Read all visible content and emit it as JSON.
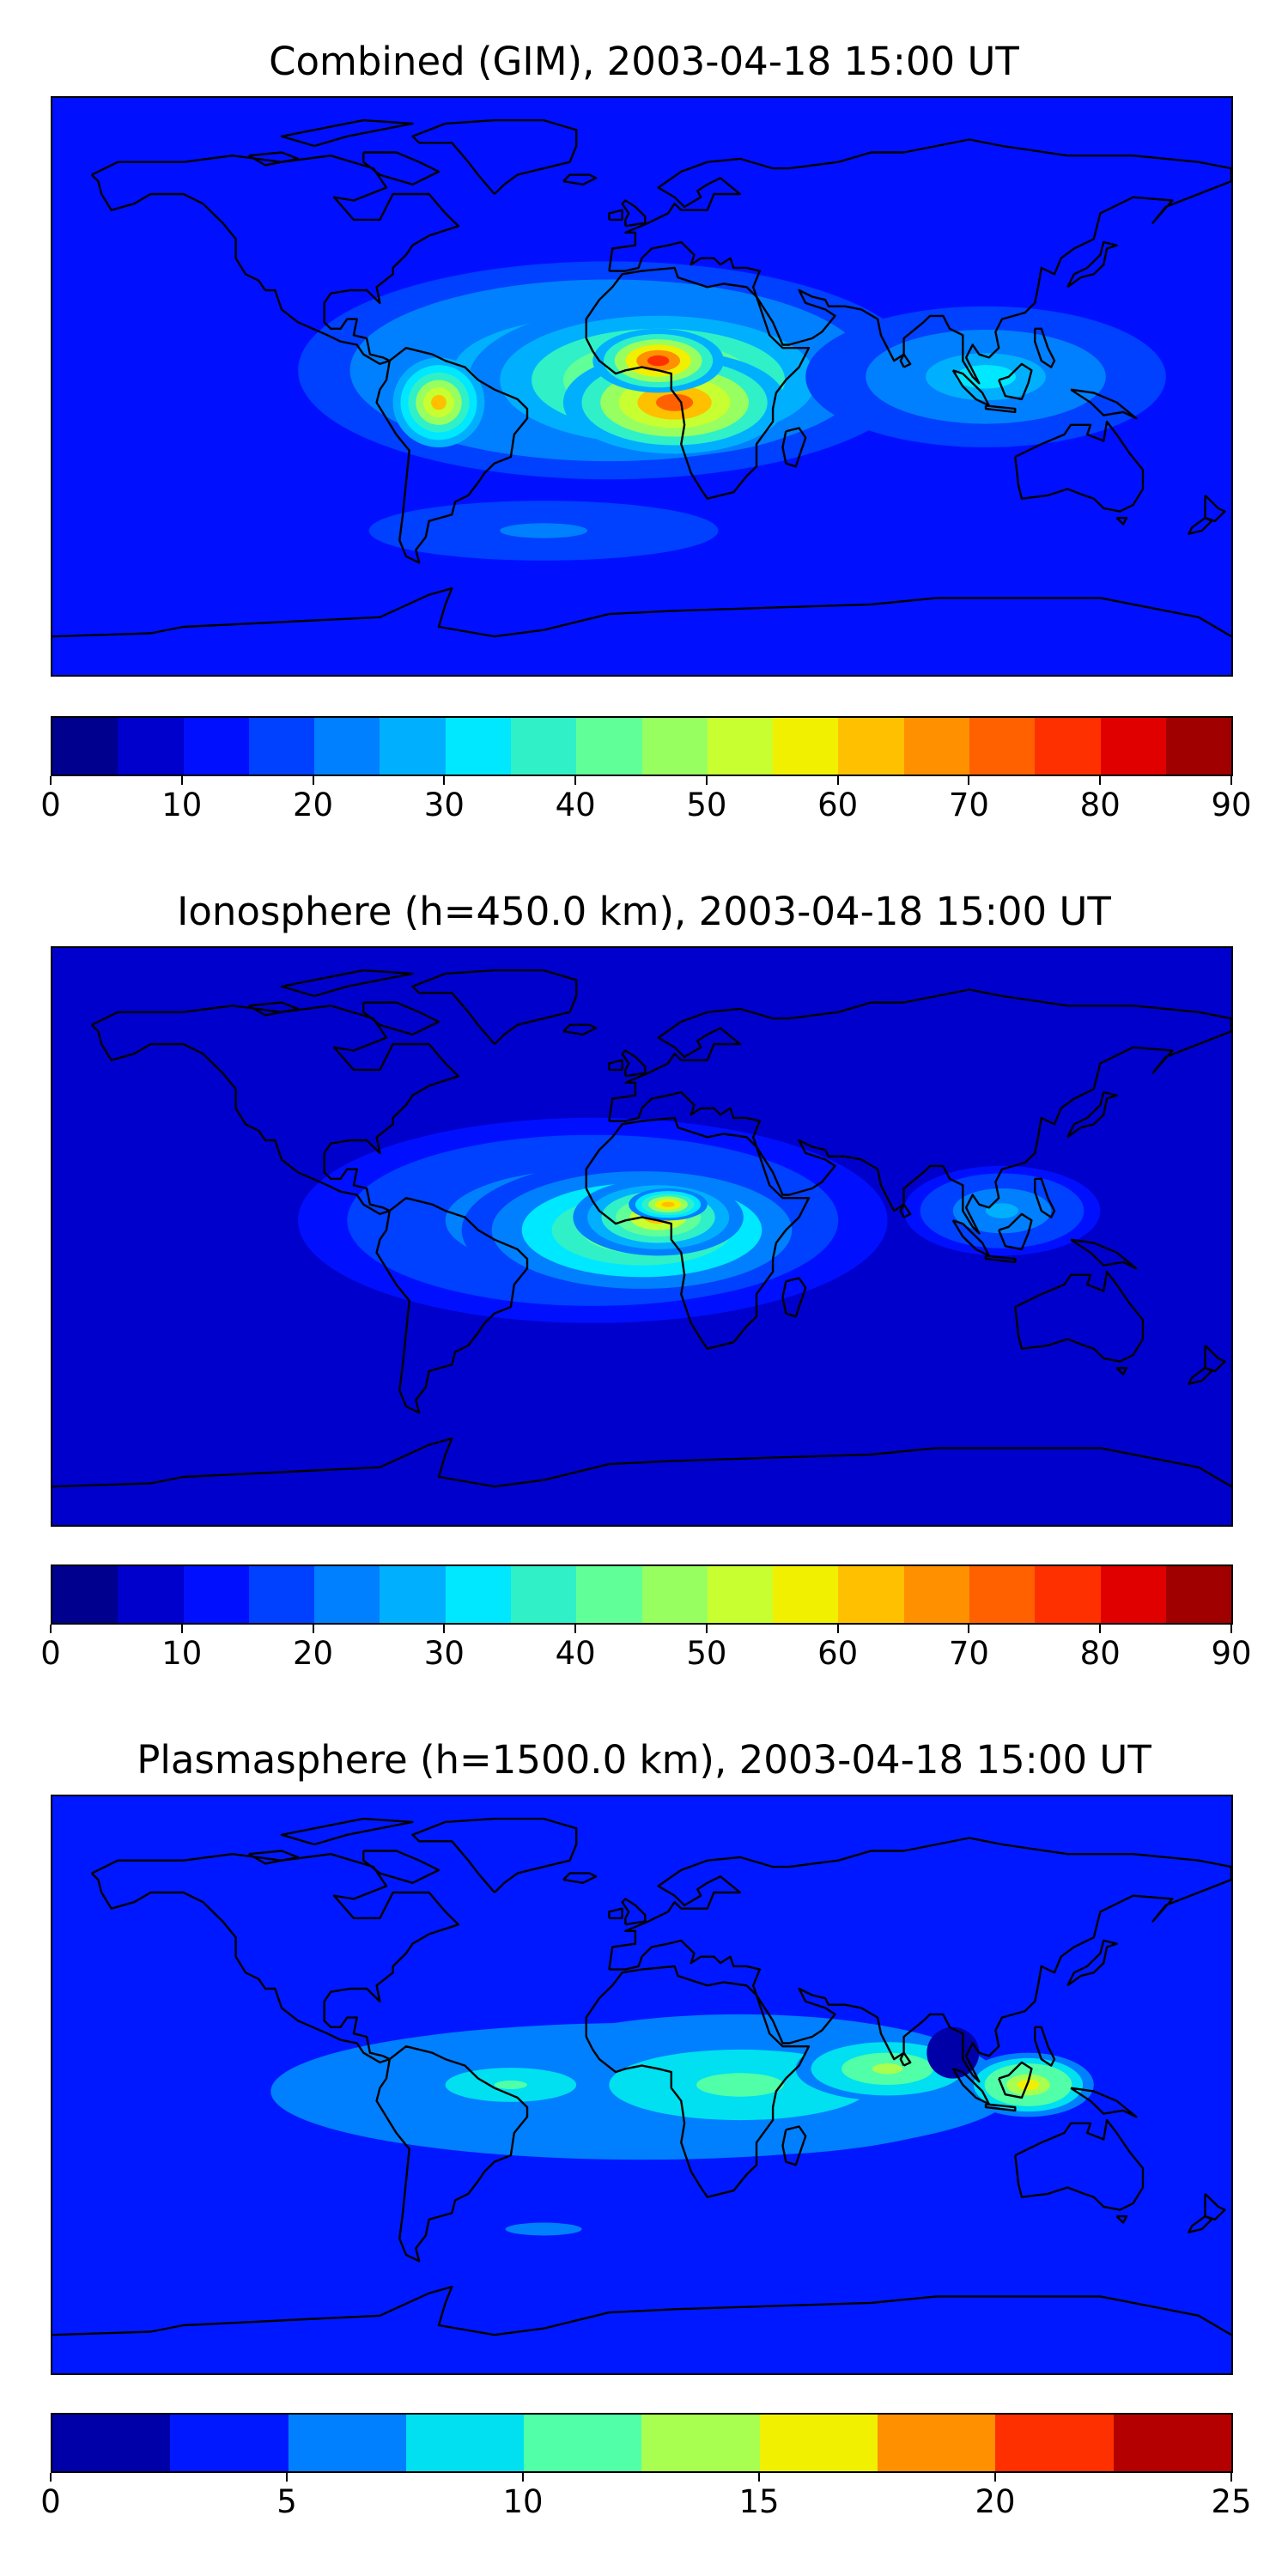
{
  "panels": [
    {
      "title": "Combined (GIM), 2003-04-18 15:00 UT",
      "colorbar": {
        "ticks": [
          "0",
          "10",
          "20",
          "30",
          "40",
          "50",
          "60",
          "70",
          "80",
          "90"
        ],
        "levels": [
          0,
          5,
          10,
          15,
          20,
          25,
          30,
          35,
          40,
          45,
          50,
          55,
          60,
          65,
          70,
          75,
          80,
          85,
          90
        ],
        "colors": [
          "#00008f",
          "#0000cd",
          "#0010ff",
          "#0040ff",
          "#0080ff",
          "#00b0ff",
          "#00e8ff",
          "#30f0c8",
          "#60ff98",
          "#98ff60",
          "#c8ff30",
          "#f0f000",
          "#ffc000",
          "#ff9000",
          "#ff6000",
          "#ff3000",
          "#e00000",
          "#a00000"
        ]
      },
      "field": {
        "background": 10,
        "blobs": [
          {
            "lon": -10,
            "lat": 5,
            "rx": 95,
            "ry": 34,
            "value": 34
          },
          {
            "lon": 5,
            "lat": 2,
            "rx": 58,
            "ry": 24,
            "value": 54
          },
          {
            "lon": 10,
            "lat": -5,
            "rx": 34,
            "ry": 16,
            "value": 72
          },
          {
            "lon": 5,
            "lat": 8,
            "rx": 20,
            "ry": 10,
            "value": 76
          },
          {
            "lon": -62,
            "lat": -5,
            "rx": 14,
            "ry": 14,
            "value": 60
          },
          {
            "lon": 105,
            "lat": 3,
            "rx": 55,
            "ry": 22,
            "value": 30
          },
          {
            "lon": -30,
            "lat": -45,
            "rx": 80,
            "ry": 14,
            "value": 20
          }
        ]
      }
    },
    {
      "title": "Ionosphere  (h=450.0 km), 2003-04-18 15:00 UT",
      "colorbar": {
        "ticks": [
          "0",
          "10",
          "20",
          "30",
          "40",
          "50",
          "60",
          "70",
          "80",
          "90"
        ],
        "levels": [
          0,
          5,
          10,
          15,
          20,
          25,
          30,
          35,
          40,
          45,
          50,
          55,
          60,
          65,
          70,
          75,
          80,
          85,
          90
        ],
        "colors": [
          "#00008f",
          "#0000cd",
          "#0010ff",
          "#0040ff",
          "#0080ff",
          "#00b0ff",
          "#00e8ff",
          "#30f0c8",
          "#60ff98",
          "#98ff60",
          "#c8ff30",
          "#f0f000",
          "#ffc000",
          "#ff9000",
          "#ff6000",
          "#ff3000",
          "#e00000",
          "#a00000"
        ]
      },
      "field": {
        "background": 6,
        "blobs": [
          {
            "lon": -15,
            "lat": 5,
            "rx": 90,
            "ry": 32,
            "value": 30
          },
          {
            "lon": 0,
            "lat": 2,
            "rx": 55,
            "ry": 22,
            "value": 48
          },
          {
            "lon": 5,
            "lat": 6,
            "rx": 26,
            "ry": 12,
            "value": 60
          },
          {
            "lon": 8,
            "lat": 10,
            "rx": 12,
            "ry": 5,
            "value": 64
          },
          {
            "lon": 110,
            "lat": 8,
            "rx": 30,
            "ry": 14,
            "value": 28
          }
        ]
      }
    },
    {
      "title": "Plasmasphere (h=1500.0 km), 2003-04-18 15:00 UT",
      "colorbar": {
        "ticks": [
          "0",
          "5",
          "10",
          "15",
          "20",
          "25"
        ],
        "levels": [
          0,
          2.5,
          5,
          7.5,
          10,
          12.5,
          15,
          17.5,
          20,
          22.5,
          25
        ],
        "colors": [
          "#0000a8",
          "#0018ff",
          "#0080ff",
          "#00e0f0",
          "#50ffa8",
          "#a8ff50",
          "#f0f000",
          "#ff9000",
          "#ff3000",
          "#b40000"
        ]
      },
      "field": {
        "background": 3,
        "blobs": [
          {
            "lon": 0,
            "lat": -2,
            "rx": 170,
            "ry": 32,
            "value": 7.3
          },
          {
            "lon": 30,
            "lat": 0,
            "rx": 80,
            "ry": 22,
            "value": 10
          },
          {
            "lon": 75,
            "lat": 5,
            "rx": 28,
            "ry": 10,
            "value": 14
          },
          {
            "lon": 118,
            "lat": 0,
            "rx": 20,
            "ry": 10,
            "value": 15.5
          },
          {
            "lon": -40,
            "lat": 0,
            "rx": 30,
            "ry": 8,
            "value": 11
          },
          {
            "lon": 95,
            "lat": 10,
            "rx": 8,
            "ry": 8,
            "value": -4
          },
          {
            "lon": -30,
            "lat": -45,
            "rx": 70,
            "ry": 12,
            "value": 5
          }
        ]
      }
    }
  ]
}
